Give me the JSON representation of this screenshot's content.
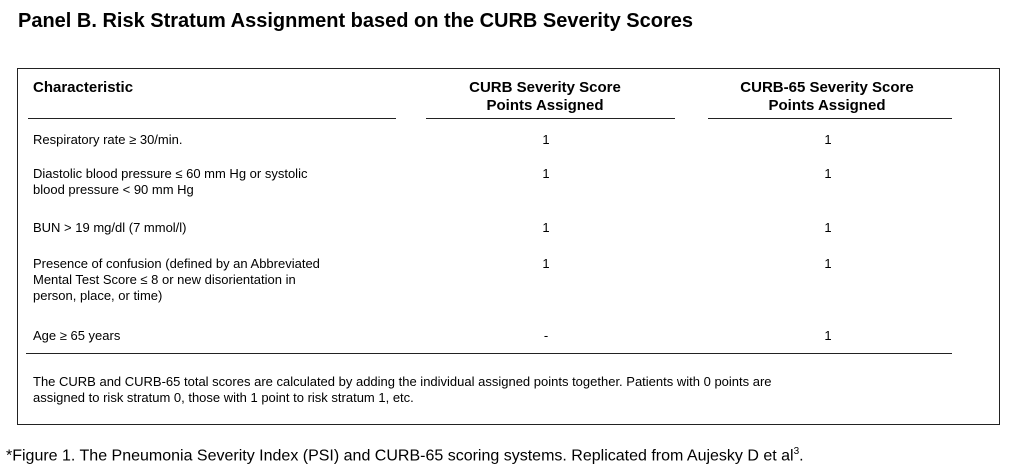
{
  "panel_title": "Panel B.  Risk Stratum Assignment based on the CURB Severity Scores",
  "table": {
    "headers": {
      "characteristic": "Characteristic",
      "curb_line1": "CURB Severity Score",
      "curb_line2": "Points Assigned",
      "curb65_line1": "CURB-65 Severity Score",
      "curb65_line2": "Points Assigned"
    },
    "rows": [
      {
        "characteristic": [
          "Respiratory rate ≥ 30/min."
        ],
        "curb": "1",
        "curb65": "1"
      },
      {
        "characteristic": [
          "Diastolic blood pressure ≤ 60 mm Hg or systolic",
          "blood pressure < 90 mm Hg"
        ],
        "curb": "1",
        "curb65": "1"
      },
      {
        "characteristic": [
          "BUN > 19 mg/dl (7 mmol/l)"
        ],
        "curb": "1",
        "curb65": "1"
      },
      {
        "characteristic": [
          "Presence of confusion (defined by an Abbreviated",
          "Mental Test Score ≤ 8 or new disorientation in",
          "person, place, or time)"
        ],
        "curb": "1",
        "curb65": "1"
      },
      {
        "characteristic": [
          "Age ≥ 65 years"
        ],
        "curb": "-",
        "curb65": "1"
      }
    ],
    "footnote": [
      "The CURB and CURB-65 total scores are calculated by adding the individual assigned points together. Patients with 0 points are",
      "assigned to risk stratum 0, those with 1 point to risk stratum 1, etc."
    ]
  },
  "caption": {
    "text": "*Figure 1. The Pneumonia Severity Index (PSI) and CURB-65 scoring systems. Replicated from Aujesky D et al",
    "superscript": "3",
    "end": "."
  }
}
